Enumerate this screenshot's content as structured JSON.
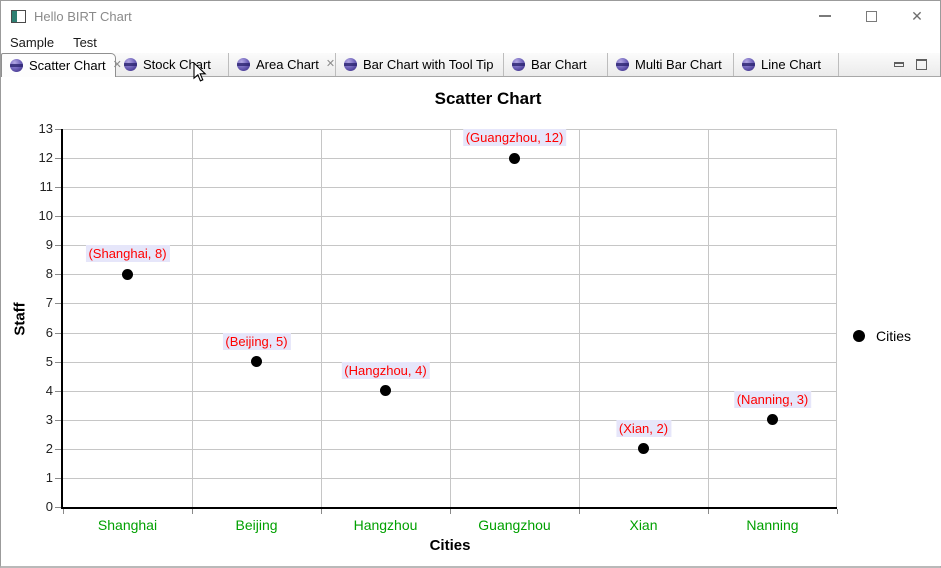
{
  "window": {
    "title": "Hello BIRT Chart"
  },
  "icons": {
    "tab_close": "✕",
    "window_close": "✕"
  },
  "menu": {
    "items": [
      {
        "label": "Sample"
      },
      {
        "label": "Test"
      }
    ]
  },
  "tabbar": {
    "tabs": [
      {
        "label": "Scatter Chart",
        "selected": true,
        "closable": true
      },
      {
        "label": "Stock Chart",
        "selected": false,
        "closable": false
      },
      {
        "label": "Area Chart",
        "selected": false,
        "closable": true
      },
      {
        "label": "Bar Chart with Tool Tip",
        "selected": false,
        "closable": false
      },
      {
        "label": "Bar Chart",
        "selected": false,
        "closable": false
      },
      {
        "label": "Multi Bar Chart",
        "selected": false,
        "closable": false
      },
      {
        "label": "Line Chart",
        "selected": false,
        "closable": false
      }
    ]
  },
  "chart_data": {
    "type": "scatter",
    "title": "Scatter Chart",
    "xlabel": "Cities",
    "ylabel": "Staff",
    "categories": [
      "Shanghai",
      "Beijing",
      "Hangzhou",
      "Guangzhou",
      "Xian",
      "Nanning"
    ],
    "series": [
      {
        "name": "Cities",
        "values": [
          8,
          5,
          4,
          12,
          2,
          3
        ]
      }
    ],
    "point_labels": [
      "(Shanghai, 8)",
      "(Beijing, 5)",
      "(Hangzhou, 4)",
      "(Guangzhou, 12)",
      "(Xian, 2)",
      "(Nanning, 3)"
    ],
    "ylim": [
      0,
      13
    ],
    "ytick_step": 1,
    "grid": true,
    "legend": {
      "position": "right",
      "entries": [
        {
          "label": "Cities",
          "marker": "circle",
          "color": "#000000"
        }
      ]
    },
    "colors": {
      "point": "#000000",
      "point_label_text": "#ff0000",
      "point_label_bg": "#e6e6fa",
      "category_label": "#00a000",
      "gridline": "#c6c6c6",
      "axis": "#000000"
    }
  }
}
